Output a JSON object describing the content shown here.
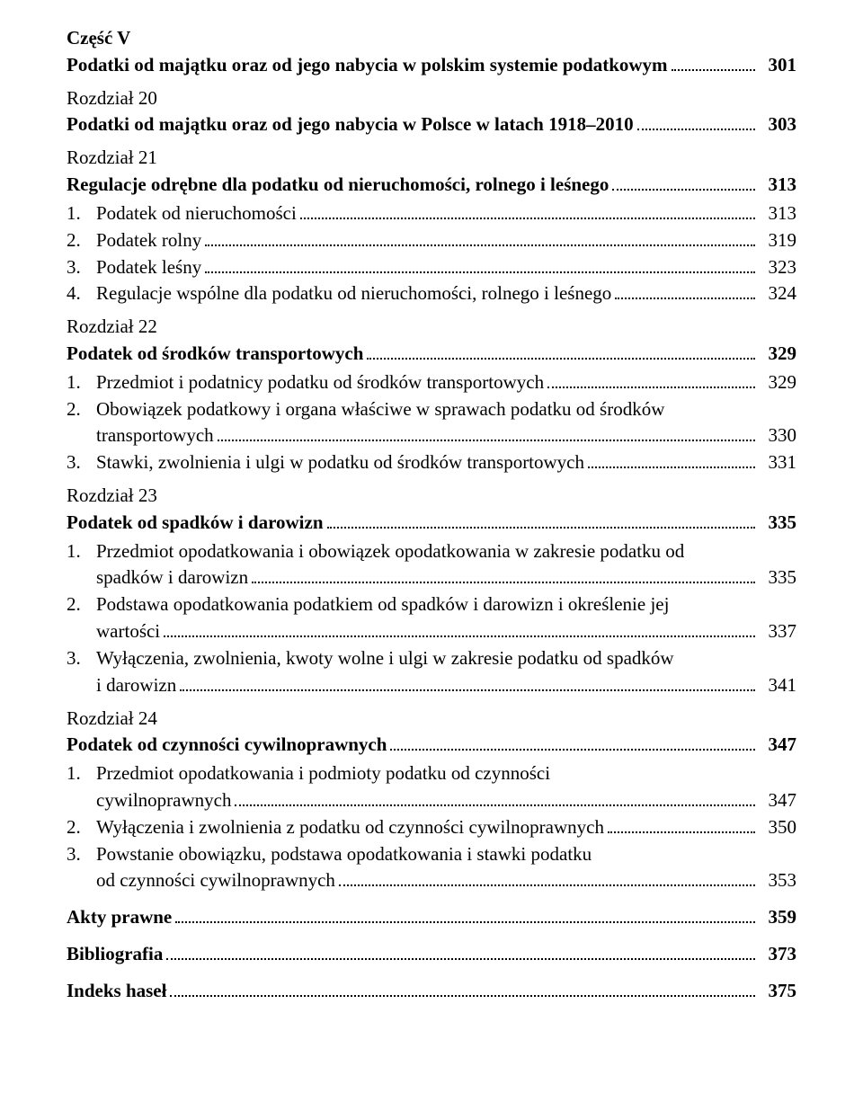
{
  "part": {
    "label": "Część V",
    "title": "Podatki od majątku oraz od jego nabycia w polskim systemie podatkowym",
    "page": "301"
  },
  "ch20": {
    "label": "Rozdział 20",
    "title": "Podatki od majątku oraz od jego nabycia w Polsce w latach 1918–2010",
    "page": "303"
  },
  "ch21": {
    "label": "Rozdział 21",
    "title": "Regulacje odrębne dla podatku od nieruchomości, rolnego i leśnego",
    "page": "313",
    "i1": {
      "n": "1.",
      "t": "Podatek od nieruchomości",
      "p": "313"
    },
    "i2": {
      "n": "2.",
      "t": "Podatek rolny",
      "p": "319"
    },
    "i3": {
      "n": "3.",
      "t": "Podatek leśny",
      "p": "323"
    },
    "i4": {
      "n": "4.",
      "t": "Regulacje wspólne dla podatku od nieruchomości, rolnego i leśnego",
      "p": "324"
    }
  },
  "ch22": {
    "label": "Rozdział 22",
    "title": "Podatek od środków transportowych",
    "page": "329",
    "i1": {
      "n": "1.",
      "t": "Przedmiot i podatnicy podatku od środków transportowych",
      "p": "329"
    },
    "i2": {
      "n": "2.",
      "t1": "Obowiązek podatkowy i organa właściwe w sprawach podatku od środków",
      "t2": "transportowych",
      "p": "330"
    },
    "i3": {
      "n": "3.",
      "t": "Stawki, zwolnienia i ulgi w podatku od środków transportowych",
      "p": "331"
    }
  },
  "ch23": {
    "label": "Rozdział 23",
    "title": "Podatek od spadków i darowizn",
    "page": "335",
    "i1": {
      "n": "1.",
      "t1": "Przedmiot opodatkowania i obowiązek opodatkowania w zakresie podatku od",
      "t2": "spadków i darowizn",
      "p": "335"
    },
    "i2": {
      "n": "2.",
      "t1": "Podstawa opodatkowania podatkiem od spadków i darowizn i określenie jej",
      "t2": "wartości",
      "p": "337"
    },
    "i3": {
      "n": "3.",
      "t1": "Wyłączenia, zwolnienia, kwoty wolne i ulgi w zakresie podatku od spadków",
      "t2": "i darowizn",
      "p": "341"
    }
  },
  "ch24": {
    "label": "Rozdział 24",
    "title": "Podatek od czynności cywilnoprawnych",
    "page": "347",
    "i1": {
      "n": "1.",
      "t1": "Przedmiot opodatkowania i podmioty podatku od czynności",
      "t2": "cywilnoprawnych",
      "p": "347"
    },
    "i2": {
      "n": "2.",
      "t": "Wyłączenia i zwolnienia z podatku od czynności cywilnoprawnych",
      "p": "350"
    },
    "i3": {
      "n": "3.",
      "t1": "Powstanie obowiązku, podstawa opodatkowania i stawki podatku",
      "t2": "od czynności cywilnoprawnych",
      "p": "353"
    }
  },
  "end": {
    "akty": {
      "t": "Akty prawne",
      "p": "359"
    },
    "bib": {
      "t": "Bibliografia",
      "p": "373"
    },
    "idx": {
      "t": "Indeks haseł",
      "p": "375"
    }
  }
}
